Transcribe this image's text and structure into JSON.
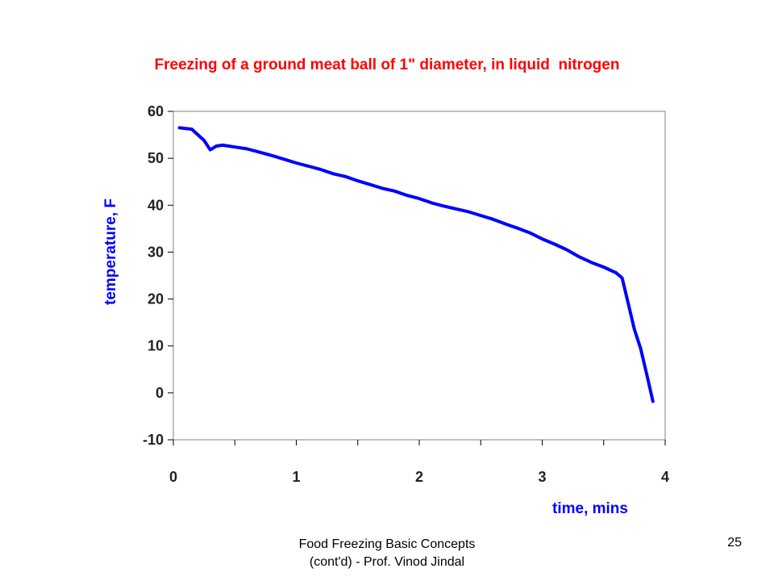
{
  "chart_data": {
    "type": "line",
    "title": "Freezing of a ground meat ball of 1\" diameter, in liquid  nitrogen",
    "xlabel": "time, mins",
    "ylabel": "temperature, F",
    "xlim": [
      0,
      4
    ],
    "ylim": [
      -10,
      60
    ],
    "xticks": [
      0,
      1,
      2,
      3,
      4
    ],
    "yticks": [
      -10,
      0,
      10,
      20,
      30,
      40,
      50,
      60
    ],
    "grid": false,
    "legend": "none",
    "series": [
      {
        "color": "#0000ff",
        "x": [
          0.05,
          0.15,
          0.2,
          0.25,
          0.3,
          0.35,
          0.4,
          0.5,
          0.6,
          0.7,
          0.8,
          0.9,
          1.0,
          1.1,
          1.2,
          1.3,
          1.4,
          1.5,
          1.6,
          1.7,
          1.8,
          1.9,
          2.0,
          2.1,
          2.2,
          2.3,
          2.4,
          2.5,
          2.6,
          2.7,
          2.8,
          2.9,
          3.0,
          3.1,
          3.2,
          3.3,
          3.4,
          3.5,
          3.6,
          3.65,
          3.7,
          3.75,
          3.8,
          3.85,
          3.9
        ],
        "y": [
          56.5,
          56.2,
          55.0,
          53.8,
          51.8,
          52.6,
          52.8,
          52.4,
          52.0,
          51.3,
          50.6,
          49.8,
          49.0,
          48.3,
          47.6,
          46.7,
          46.1,
          45.2,
          44.4,
          43.6,
          43.0,
          42.1,
          41.4,
          40.5,
          39.8,
          39.2,
          38.6,
          37.8,
          37.0,
          36.0,
          35.1,
          34.1,
          32.8,
          31.7,
          30.5,
          29.0,
          27.8,
          26.8,
          25.6,
          24.5,
          19.0,
          13.5,
          9.5,
          4.0,
          -1.8
        ]
      }
    ]
  },
  "footer": {
    "line1": "Food Freezing Basic Concepts",
    "line2": "(cont'd) - Prof. Vinod Jindal"
  },
  "slide_number": "25"
}
